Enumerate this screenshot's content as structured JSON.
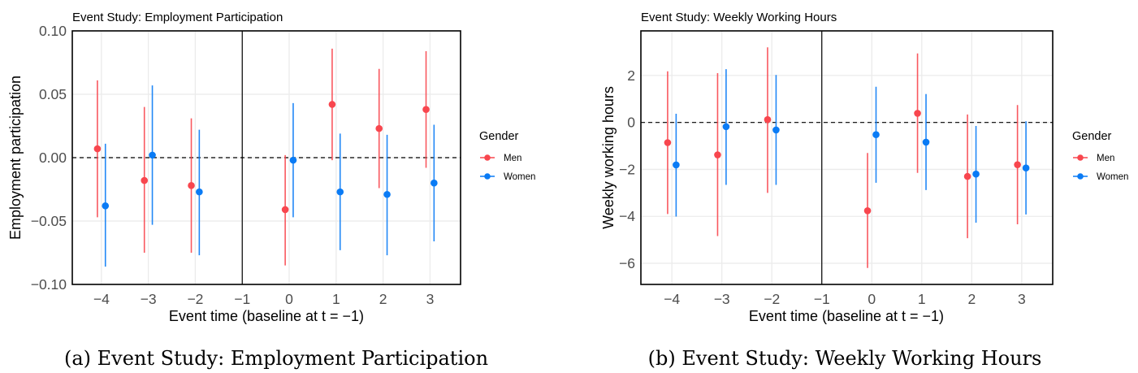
{
  "colors": {
    "Men": "#f8464e",
    "Women": "#0a7bf5",
    "grid": "#ebebeb",
    "axis": "#000000"
  },
  "captions": [
    "(a) Event Study: Employment Participation",
    "(b) Event Study: Weekly Working Hours"
  ],
  "chart_data": [
    {
      "type": "scatter",
      "subtype": "errorbar",
      "title": "Event Study: Employment Participation",
      "xlabel": "Event time (baseline at t = −1)",
      "ylabel": "Employment participation",
      "xlim": [
        -4.62,
        3.65
      ],
      "ylim": [
        -0.1,
        0.1
      ],
      "xticks": [
        -4,
        -3,
        -2,
        -1,
        0,
        1,
        2,
        3
      ],
      "xtick_labels": [
        "−4",
        "−3",
        "−2",
        "−1",
        "0",
        "1",
        "2",
        "3"
      ],
      "yticks": [
        0.1,
        0.05,
        0.0,
        -0.05,
        -0.1
      ],
      "ytick_labels": [
        "0.10",
        "0.05",
        "0.00",
        "−0.05",
        "−0.10"
      ],
      "reference_hline": 0,
      "reference_vline": -1,
      "grid": true,
      "legend": {
        "title": "Gender",
        "placement": "right",
        "entries": [
          "Men",
          "Women"
        ]
      },
      "series": [
        {
          "name": "Men",
          "x": [
            -4,
            -3,
            -2,
            0,
            1,
            2,
            3
          ],
          "estimate": [
            0.007,
            -0.018,
            -0.022,
            -0.041,
            0.042,
            0.023,
            0.038
          ],
          "ci_low": [
            -0.047,
            -0.075,
            -0.075,
            -0.085,
            -0.002,
            -0.024,
            -0.008
          ],
          "ci_high": [
            0.061,
            0.04,
            0.031,
            0.002,
            0.086,
            0.07,
            0.084
          ]
        },
        {
          "name": "Women",
          "x": [
            -4,
            -3,
            -2,
            0,
            1,
            2,
            3
          ],
          "estimate": [
            -0.038,
            0.002,
            -0.027,
            -0.002,
            -0.027,
            -0.029,
            -0.02
          ],
          "ci_low": [
            -0.086,
            -0.053,
            -0.077,
            -0.047,
            -0.073,
            -0.077,
            -0.066
          ],
          "ci_high": [
            0.011,
            0.057,
            0.022,
            0.043,
            0.019,
            0.018,
            0.026
          ]
        }
      ]
    },
    {
      "type": "scatter",
      "subtype": "errorbar",
      "title": "Event Study: Weekly Working Hours",
      "xlabel": "Event time (baseline at t = −1)",
      "ylabel": "Weekly working hours",
      "xlim": [
        -4.62,
        3.62
      ],
      "ylim": [
        -6.9,
        3.9
      ],
      "xticks": [
        -4,
        -3,
        -2,
        -1,
        0,
        1,
        2,
        3
      ],
      "xtick_labels": [
        "−4",
        "−3",
        "−2",
        "−1",
        "0",
        "1",
        "2",
        "3"
      ],
      "yticks": [
        2,
        0,
        -2,
        -4,
        -6
      ],
      "ytick_labels": [
        "2",
        "0",
        "−2",
        "−4",
        "−6"
      ],
      "reference_hline": 0,
      "reference_vline": -1,
      "grid": true,
      "legend": {
        "title": "Gender",
        "placement": "right",
        "entries": [
          "Men",
          "Women"
        ]
      },
      "series": [
        {
          "name": "Men",
          "x": [
            -4,
            -3,
            -2,
            0,
            1,
            2,
            3
          ],
          "estimate": [
            -0.86,
            -1.38,
            0.12,
            -3.76,
            0.39,
            -2.3,
            -1.8
          ],
          "ci_low": [
            -3.9,
            -4.84,
            -3.0,
            -6.2,
            -2.15,
            -4.93,
            -4.34
          ],
          "ci_high": [
            2.18,
            2.1,
            3.2,
            -1.3,
            2.94,
            0.34,
            0.74
          ]
        },
        {
          "name": "Women",
          "x": [
            -4,
            -3,
            -2,
            0,
            1,
            2,
            3
          ],
          "estimate": [
            -1.81,
            -0.18,
            -0.32,
            -0.52,
            -0.84,
            -2.2,
            -1.94
          ],
          "ci_low": [
            -4.01,
            -2.66,
            -2.66,
            -2.57,
            -2.88,
            -4.27,
            -3.92
          ],
          "ci_high": [
            0.37,
            2.27,
            2.02,
            1.52,
            1.21,
            -0.15,
            0.05
          ]
        }
      ]
    }
  ]
}
